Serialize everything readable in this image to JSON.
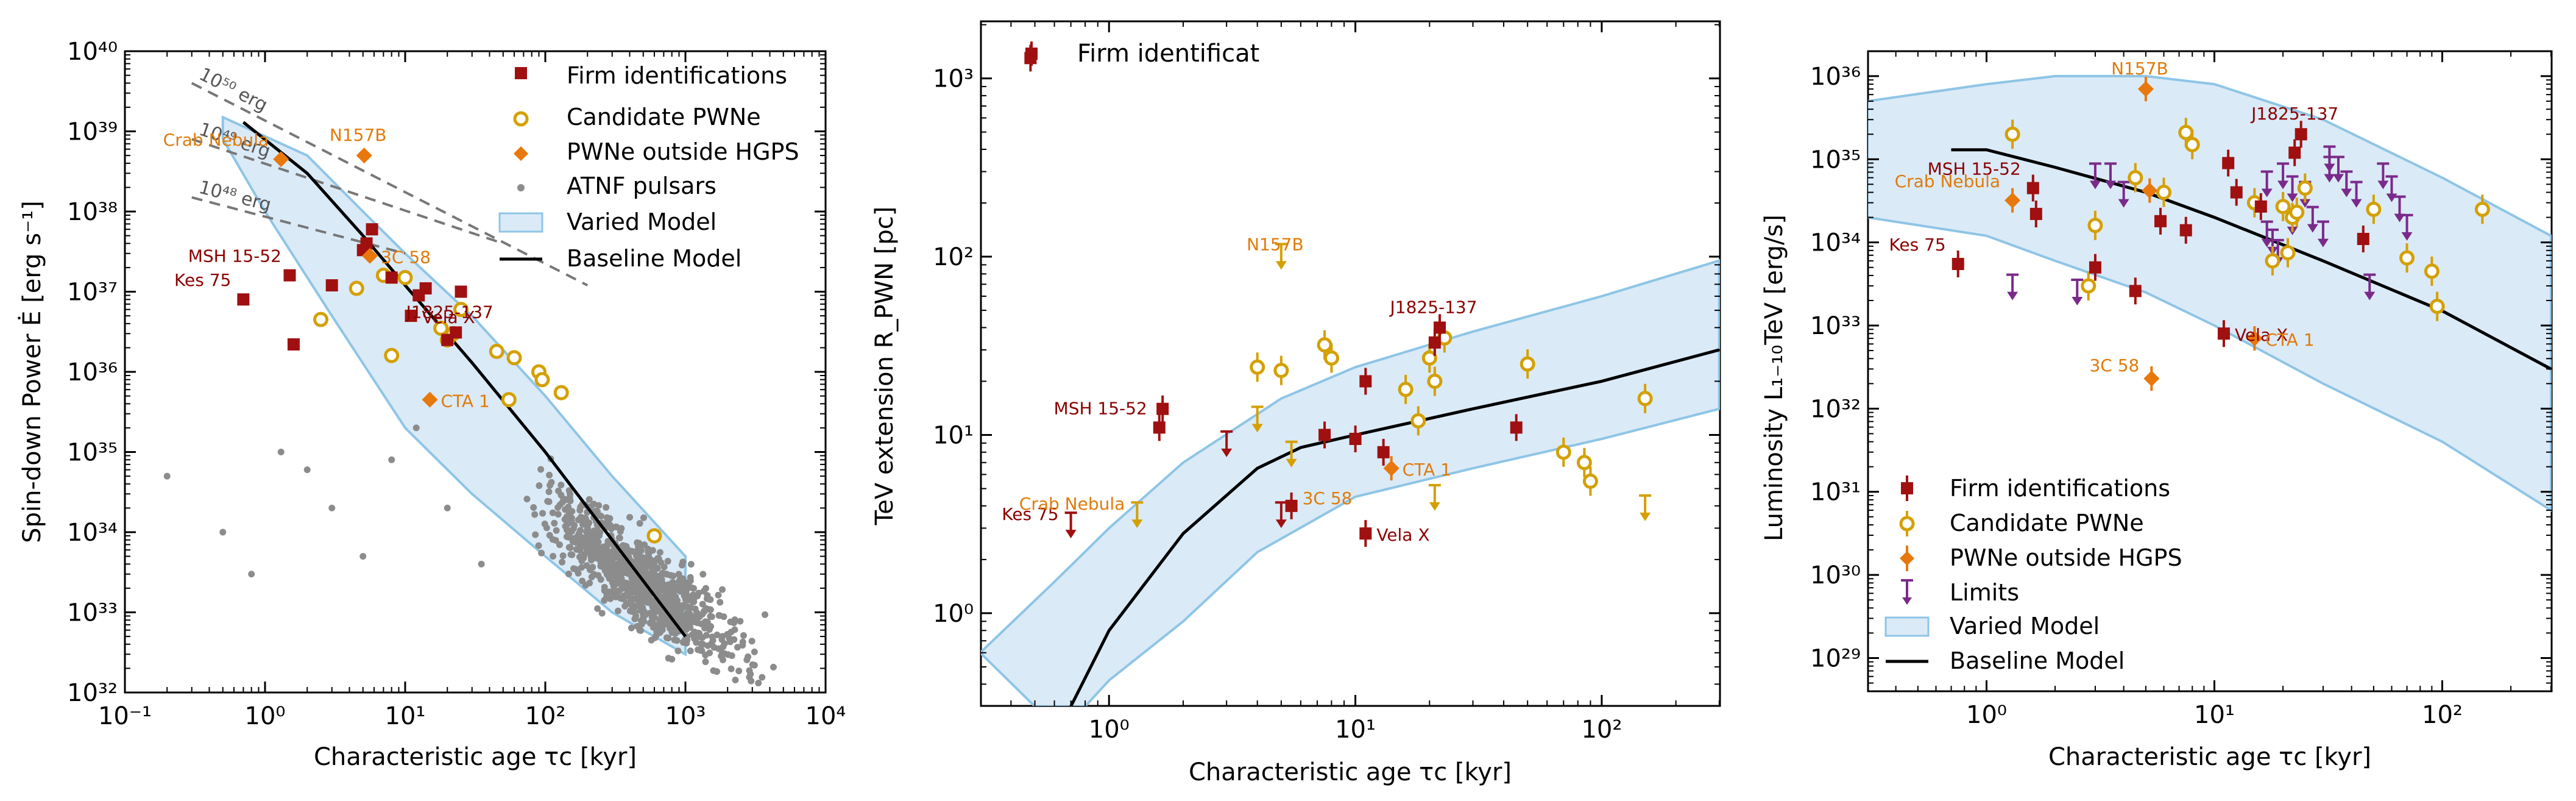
{
  "colors": {
    "firm": "#a01010",
    "candidate": "#d4a000",
    "outside": "#e8780c",
    "outside_label": "#d97a0a",
    "limits": "#7a2a8a",
    "atnf": "#8c8c8c",
    "band_fill": "#dbeaf7",
    "band_edge": "#8ec5e6",
    "baseline": "#000000",
    "firm_label": "#8b0000",
    "outside_text": "#e07b0a",
    "energy_line": "#777777"
  },
  "chart_data": [
    {
      "type": "scatter",
      "panel": "left",
      "xlabel": "Characteristic age τc [kyr]",
      "ylabel": "Spin-down Power Ė [erg s⁻¹]",
      "xlim_log": [
        -1,
        4
      ],
      "ylim_log": [
        32,
        40
      ],
      "x_ticks": [
        "10⁻¹",
        "10⁰",
        "10¹",
        "10²",
        "10³",
        "10⁴"
      ],
      "y_ticks": [
        "10³²",
        "10³³",
        "10³⁴",
        "10³⁵",
        "10³⁶",
        "10³⁷",
        "10³⁸",
        "10³⁹",
        "10⁴⁰"
      ],
      "legend": {
        "position": "top-right",
        "entries": [
          "Firm identifications",
          "Candidate PWNe",
          "PWNe outside HGPS",
          "ATNF pulsars",
          "Varied Model",
          "Baseline Model"
        ]
      },
      "energy_lines": [
        {
          "label": "10⁵⁰ erg",
          "x": [
            0.3,
            200
          ],
          "y": [
            4e+39,
            1.2e+37
          ]
        },
        {
          "label": "10⁴⁹ erg",
          "x": [
            0.3,
            50
          ],
          "y": [
            8e+38,
            4e+37
          ]
        },
        {
          "label": "10⁴⁸ erg",
          "x": [
            0.3,
            10
          ],
          "y": [
            1.5e+38,
            3e+37
          ]
        }
      ],
      "band_upper": {
        "x": [
          0.5,
          2,
          5,
          10,
          30,
          100,
          300,
          1000
        ],
        "y": [
          1.5e+39,
          5e+38,
          1e+38,
          3e+37,
          5e+36,
          5e+35,
          5e+34,
          5e+33
        ]
      },
      "band_lower": {
        "x": [
          0.5,
          1,
          3,
          10,
          30,
          100,
          300,
          1000
        ],
        "y": [
          8e+38,
          1e+38,
          5e+36,
          2e+35,
          3e+34,
          5e+33,
          1e+33,
          3e+32
        ]
      },
      "baseline": {
        "x": [
          0.7,
          2,
          5,
          10,
          30,
          100,
          300,
          1000
        ],
        "y": [
          1.3e+39,
          3e+38,
          5e+37,
          1.2e+37,
          1.3e+36,
          1e+35,
          8e+33,
          5e+32
        ]
      },
      "firm": {
        "x": [
          0.7,
          1.5,
          1.6,
          3.0,
          5.0,
          5.3,
          5.8,
          8.0,
          11.0,
          12.5,
          14.0,
          20.0,
          23.0,
          25.0
        ],
        "y": [
          8e+36,
          1.6e+37,
          2.2e+36,
          1.2e+37,
          3.3e+37,
          4e+37,
          6e+37,
          1.5e+37,
          5e+36,
          9e+36,
          1.1e+37,
          2.5e+36,
          3.1e+36,
          1e+37
        ]
      },
      "candidate": {
        "x": [
          2.5,
          4.5,
          7.0,
          8.0,
          10.0,
          18.0,
          20.0,
          22.0,
          25.0,
          45.0,
          55.0,
          60.0,
          90.0,
          95.0,
          130.0,
          600.0
        ],
        "y": [
          4.5e+36,
          1.1e+37,
          1.6e+37,
          1.6e+36,
          1.5e+37,
          3.5e+36,
          2.5e+36,
          3e+36,
          6e+36,
          1.8e+36,
          4.5e+35,
          1.5e+36,
          1e+36,
          8e+35,
          5.5e+35,
          9e+33
        ]
      },
      "outside": {
        "x": [
          1.3,
          5.1,
          5.6,
          15.0
        ],
        "y": [
          4.5e+38,
          5e+38,
          2.8e+37,
          4.5e+35
        ]
      },
      "atnf": {
        "n": 900,
        "x_log_center": 2.7,
        "x_log_spread": 0.55,
        "y_log_slope": -1.3,
        "y_log_intercept": 36.9,
        "y_log_spread": 0.45,
        "scattered": {
          "x": [
            0.2,
            0.5,
            0.8,
            1.3,
            2.0,
            3.0,
            5.0,
            8.0,
            12.0,
            20.0,
            35.0
          ],
          "y": [
            5e+34,
            1e+34,
            3e+33,
            1e+35,
            6e+34,
            2e+34,
            5e+33,
            8e+34,
            2e+35,
            2e+34,
            4e+33
          ]
        }
      },
      "point_labels": [
        {
          "text": "Crab Nebula",
          "class": "outside",
          "x": 1.3,
          "y": 4.5e+38
        },
        {
          "text": "N157B",
          "class": "outside",
          "x": 5.1,
          "y": 5e+38
        },
        {
          "text": "3C 58",
          "class": "outside",
          "x": 5.6,
          "y": 2.8e+37
        },
        {
          "text": "CTA 1",
          "class": "outside",
          "x": 15.0,
          "y": 4.5e+35
        },
        {
          "text": "MSH 15-52",
          "class": "firm",
          "x": 1.6,
          "y": 1.6e+37
        },
        {
          "text": "Kes 75",
          "class": "firm",
          "x": 0.7,
          "y": 8e+36
        },
        {
          "text": "Vela X",
          "class": "firm",
          "x": 11.0,
          "y": 5e+36
        },
        {
          "text": "J1825-137",
          "class": "firm",
          "x": 23.0,
          "y": 3.1e+36
        }
      ]
    },
    {
      "type": "scatter",
      "panel": "middle",
      "xlabel": "Characteristic age τc [kyr]",
      "ylabel": "TeV extension R_PWN [pc]",
      "xlim_log": [
        -0.52,
        2.48
      ],
      "ylim_log": [
        -0.52,
        3.32
      ],
      "x_ticks": [
        "10⁰",
        "10¹",
        "10²"
      ],
      "y_ticks": [
        "10⁰",
        "10¹",
        "10²",
        "10³"
      ],
      "legend": {
        "position": "top-left",
        "entries": [
          "Firm identificat"
        ]
      },
      "band_upper": {
        "x": [
          0.3,
          0.6,
          1,
          2,
          5,
          10,
          30,
          100,
          300
        ],
        "y": [
          0.6,
          1.5,
          3,
          7,
          16,
          24,
          38,
          60,
          95
        ]
      },
      "band_lower": {
        "x": [
          0.5,
          0.8,
          1,
          2,
          4,
          10,
          30,
          100,
          300
        ],
        "y": [
          0.3,
          0.3,
          0.42,
          0.9,
          2.2,
          4.5,
          6.5,
          9.5,
          14
        ]
      },
      "baseline": {
        "x": [
          0.7,
          1,
          2,
          4,
          6,
          10,
          30,
          100,
          300
        ],
        "y": [
          0.3,
          0.8,
          2.8,
          6.5,
          8.5,
          10,
          14,
          20,
          30
        ]
      },
      "firm": {
        "x": [
          0.48,
          0.7,
          1.6,
          1.65,
          3.0,
          5.0,
          5.5,
          7.5,
          10.0,
          11.0,
          11.0,
          13.0,
          21.0,
          22.0,
          45.0
        ],
        "y": [
          1300,
          2.8,
          11,
          14,
          8,
          3.2,
          4,
          10,
          9.5,
          2.8,
          20,
          8,
          33,
          40,
          11
        ]
      },
      "firm_limits": [
        0,
        1,
        4,
        5
      ],
      "candidate": {
        "x": [
          4.0,
          5.0,
          7.5,
          8.0,
          16.0,
          18.0,
          20.0,
          21.0,
          23.0,
          50.0,
          70.0,
          85.0,
          90.0,
          150.0
        ],
        "y": [
          24,
          23,
          32,
          27,
          18,
          12,
          27,
          20,
          35,
          25,
          8,
          7,
          5.5,
          16
        ]
      },
      "orange_limits": {
        "x": [
          1.3,
          4.0,
          5.0,
          5.5,
          21.0,
          150.0
        ],
        "y": [
          3.2,
          11,
          90,
          7,
          4,
          3.5
        ]
      },
      "outside": {
        "x": [
          14.0
        ],
        "y": [
          6.5
        ]
      },
      "point_labels": [
        {
          "text": "N157B",
          "class": "outside",
          "x": 5.0,
          "y": 90
        },
        {
          "text": "J1825-137",
          "class": "firm",
          "x": 22.0,
          "y": 40
        },
        {
          "text": "MSH 15-52",
          "class": "firm",
          "x": 1.6,
          "y": 11
        },
        {
          "text": "CTA 1",
          "class": "outside",
          "x": 14.0,
          "y": 6.5
        },
        {
          "text": "3C 58",
          "class": "outside",
          "x": 5.5,
          "y": 4.5
        },
        {
          "text": "Kes 75",
          "class": "firm",
          "x": 0.7,
          "y": 2.8
        },
        {
          "text": "Crab Nebula",
          "class": "outside",
          "x": 1.3,
          "y": 3.2
        },
        {
          "text": "Vela X",
          "class": "firm",
          "x": 11.0,
          "y": 2.8
        }
      ]
    },
    {
      "type": "scatter",
      "panel": "right",
      "xlabel": "Characteristic age τc [kyr]",
      "ylabel": "Luminosity L₁₋₁₀TeV [erg/s]",
      "xlim_log": [
        -0.52,
        2.48
      ],
      "ylim_log": [
        28.6,
        36.3
      ],
      "x_ticks": [
        "10⁰",
        "10¹",
        "10²"
      ],
      "y_ticks": [
        "10²⁹",
        "10³⁰",
        "10³¹",
        "10³²",
        "10³³",
        "10³⁴",
        "10³⁵",
        "10³⁶"
      ],
      "legend": {
        "position": "bottom-left",
        "entries": [
          "Firm identifications",
          "Candidate PWNe",
          "PWNe outside HGPS",
          "Limits",
          "Varied Model",
          "Baseline Model"
        ]
      },
      "band_upper": {
        "x": [
          0.3,
          1,
          2,
          5,
          10,
          30,
          100,
          300
        ],
        "y": [
          5e+35,
          8e+35,
          1e+36,
          1e+36,
          8e+35,
          3e+35,
          6e+34,
          1.2e+34
        ]
      },
      "band_lower": {
        "x": [
          0.3,
          1,
          2,
          5,
          10,
          30,
          100,
          300
        ],
        "y": [
          2e+34,
          1.2e+34,
          6e+33,
          2.5e+33,
          1e+33,
          2e+32,
          4e+31,
          6e+30
        ]
      },
      "baseline": {
        "x": [
          0.7,
          1,
          2,
          5,
          10,
          30,
          100,
          300
        ],
        "y": [
          1.3e+35,
          1.3e+35,
          8e+34,
          4e+34,
          2e+34,
          6e+33,
          1.5e+33,
          3e+32
        ]
      },
      "firm": {
        "x": [
          0.75,
          1.6,
          1.65,
          3.0,
          4.5,
          5.8,
          7.5,
          11.0,
          11.5,
          12.5,
          16.0,
          22.5,
          24.0,
          45.0
        ],
        "y": [
          5.5e+33,
          4.5e+34,
          2.2e+34,
          5e+33,
          2.6e+33,
          1.8e+34,
          1.4e+34,
          8e+32,
          9e+34,
          4e+34,
          2.7e+34,
          1.2e+35,
          2e+35,
          1.1e+34
        ]
      },
      "candidate": {
        "x": [
          1.3,
          2.8,
          3.0,
          4.5,
          6.0,
          7.5,
          8.0,
          15.0,
          18.0,
          20.0,
          21.0,
          22.0,
          23.0,
          25.0,
          50.0,
          70.0,
          90.0,
          95.0,
          150.0
        ],
        "y": [
          2e+35,
          3e+33,
          1.6e+34,
          6e+34,
          4e+34,
          2.1e+35,
          1.5e+35,
          3e+34,
          6e+33,
          2.7e+34,
          7.5e+33,
          2e+34,
          2.3e+34,
          4.5e+34,
          2.5e+34,
          6.5e+33,
          4.5e+33,
          1.7e+33,
          2.5e+34
        ]
      },
      "outside": {
        "x": [
          1.3,
          5.0,
          5.2,
          5.3,
          15.0
        ],
        "y": [
          3.2e+34,
          7e+35,
          4.2e+34,
          2.3e+32,
          7e+32
        ]
      },
      "limits": {
        "x": [
          1.3,
          2.5,
          3.0,
          3.5,
          4.0,
          17.0,
          18.0,
          19.0,
          20.0,
          22.0,
          25.0,
          27.0,
          30.0,
          32.0,
          35.0,
          38.0,
          42.0,
          48.0,
          55.0,
          60.0,
          65.0,
          70.0,
          32.0,
          22.0,
          17.0
        ],
        "y": [
          2.3e+33,
          2e+33,
          5e+34,
          5e+34,
          3e+34,
          1e+34,
          8e+33,
          6e+33,
          5e+34,
          3.5e+34,
          3e+34,
          1.5e+34,
          1e+34,
          8e+34,
          6e+34,
          4e+34,
          3e+34,
          2.3e+33,
          5e+34,
          3.5e+34,
          2e+34,
          1.2e+34,
          6e+34,
          1.4e+34,
          4e+34
        ]
      },
      "point_labels": [
        {
          "text": "N157B",
          "class": "outside",
          "x": 5.0,
          "y": 7e+35
        },
        {
          "text": "J1825-137",
          "class": "firm",
          "x": 24.0,
          "y": 2e+35
        },
        {
          "text": "MSH 15-52",
          "class": "firm",
          "x": 1.6,
          "y": 4.5e+34
        },
        {
          "text": "Crab Nebula",
          "class": "outside",
          "x": 1.3,
          "y": 3.2e+34
        },
        {
          "text": "Kes 75",
          "class": "firm",
          "x": 0.75,
          "y": 5.5e+33
        },
        {
          "text": "Vela X",
          "class": "firm",
          "x": 11.0,
          "y": 8e+32
        },
        {
          "text": "CTA 1",
          "class": "outside",
          "x": 15.0,
          "y": 7e+32
        },
        {
          "text": "3C 58",
          "class": "outside",
          "x": 5.3,
          "y": 2.3e+32
        }
      ]
    }
  ]
}
